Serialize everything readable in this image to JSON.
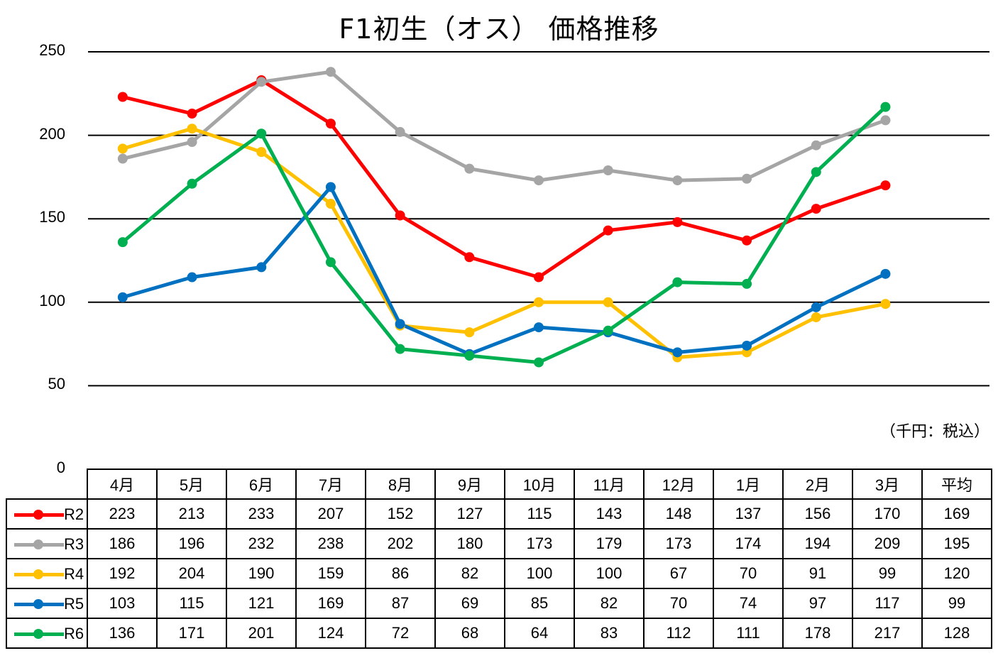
{
  "chart_data": {
    "type": "line",
    "title": "F1初生（オス） 価格推移",
    "unit_note": "（千円：税込）",
    "categories": [
      "4月",
      "5月",
      "6月",
      "7月",
      "8月",
      "9月",
      "10月",
      "11月",
      "12月",
      "1月",
      "2月",
      "3月"
    ],
    "ylim": [
      0,
      250
    ],
    "yticks": [
      "250",
      "200",
      "150",
      "100",
      "50",
      "0"
    ],
    "ytick_values": [
      250,
      200,
      150,
      100,
      50,
      0
    ],
    "grid": true,
    "legend": "bottom data table",
    "summary_header": "平均",
    "series": [
      {
        "name": "R2",
        "color": "#ff0000",
        "values": [
          223,
          213,
          233,
          207,
          152,
          127,
          115,
          143,
          148,
          137,
          156,
          170
        ],
        "average": 169
      },
      {
        "name": "R3",
        "color": "#a5a5a5",
        "values": [
          186,
          196,
          232,
          238,
          202,
          180,
          173,
          179,
          173,
          174,
          194,
          209
        ],
        "average": 195
      },
      {
        "name": "R4",
        "color": "#ffc000",
        "values": [
          192,
          204,
          190,
          159,
          86,
          82,
          100,
          100,
          67,
          70,
          91,
          99
        ],
        "average": 120
      },
      {
        "name": "R5",
        "color": "#0070c0",
        "values": [
          103,
          115,
          121,
          169,
          87,
          69,
          85,
          82,
          70,
          74,
          97,
          117
        ],
        "average": 99
      },
      {
        "name": "R6",
        "color": "#00b050",
        "values": [
          136,
          171,
          201,
          124,
          72,
          68,
          64,
          83,
          112,
          111,
          178,
          217
        ],
        "average": 128
      }
    ]
  }
}
